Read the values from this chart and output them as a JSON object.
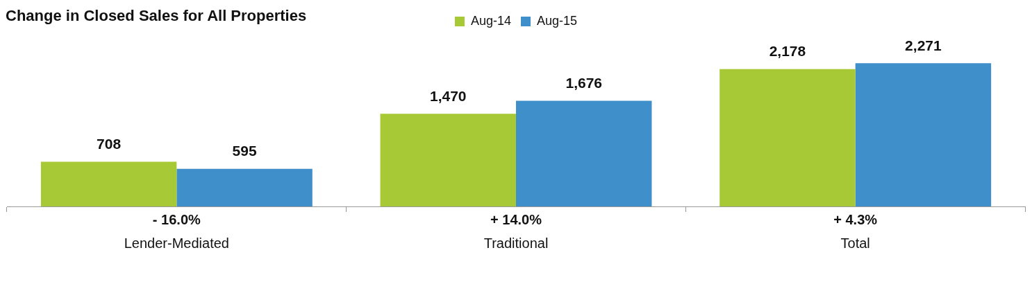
{
  "chart_data": {
    "type": "bar",
    "title": "Change in Closed Sales for All Properties",
    "categories": [
      "Lender-Mediated",
      "Traditional",
      "Total"
    ],
    "series": [
      {
        "name": "Aug-14",
        "color": "#a7c935",
        "values": [
          708,
          1470,
          2178
        ],
        "value_labels": [
          "708",
          "1,470",
          "2,178"
        ]
      },
      {
        "name": "Aug-15",
        "color": "#3f8fcb",
        "values": [
          595,
          1676,
          2271
        ],
        "value_labels": [
          "595",
          "1,676",
          "2,271"
        ]
      }
    ],
    "annotations": [
      "- 16.0%",
      "+ 14.0%",
      "+ 4.3%"
    ],
    "legend": "top",
    "grid": false
  }
}
